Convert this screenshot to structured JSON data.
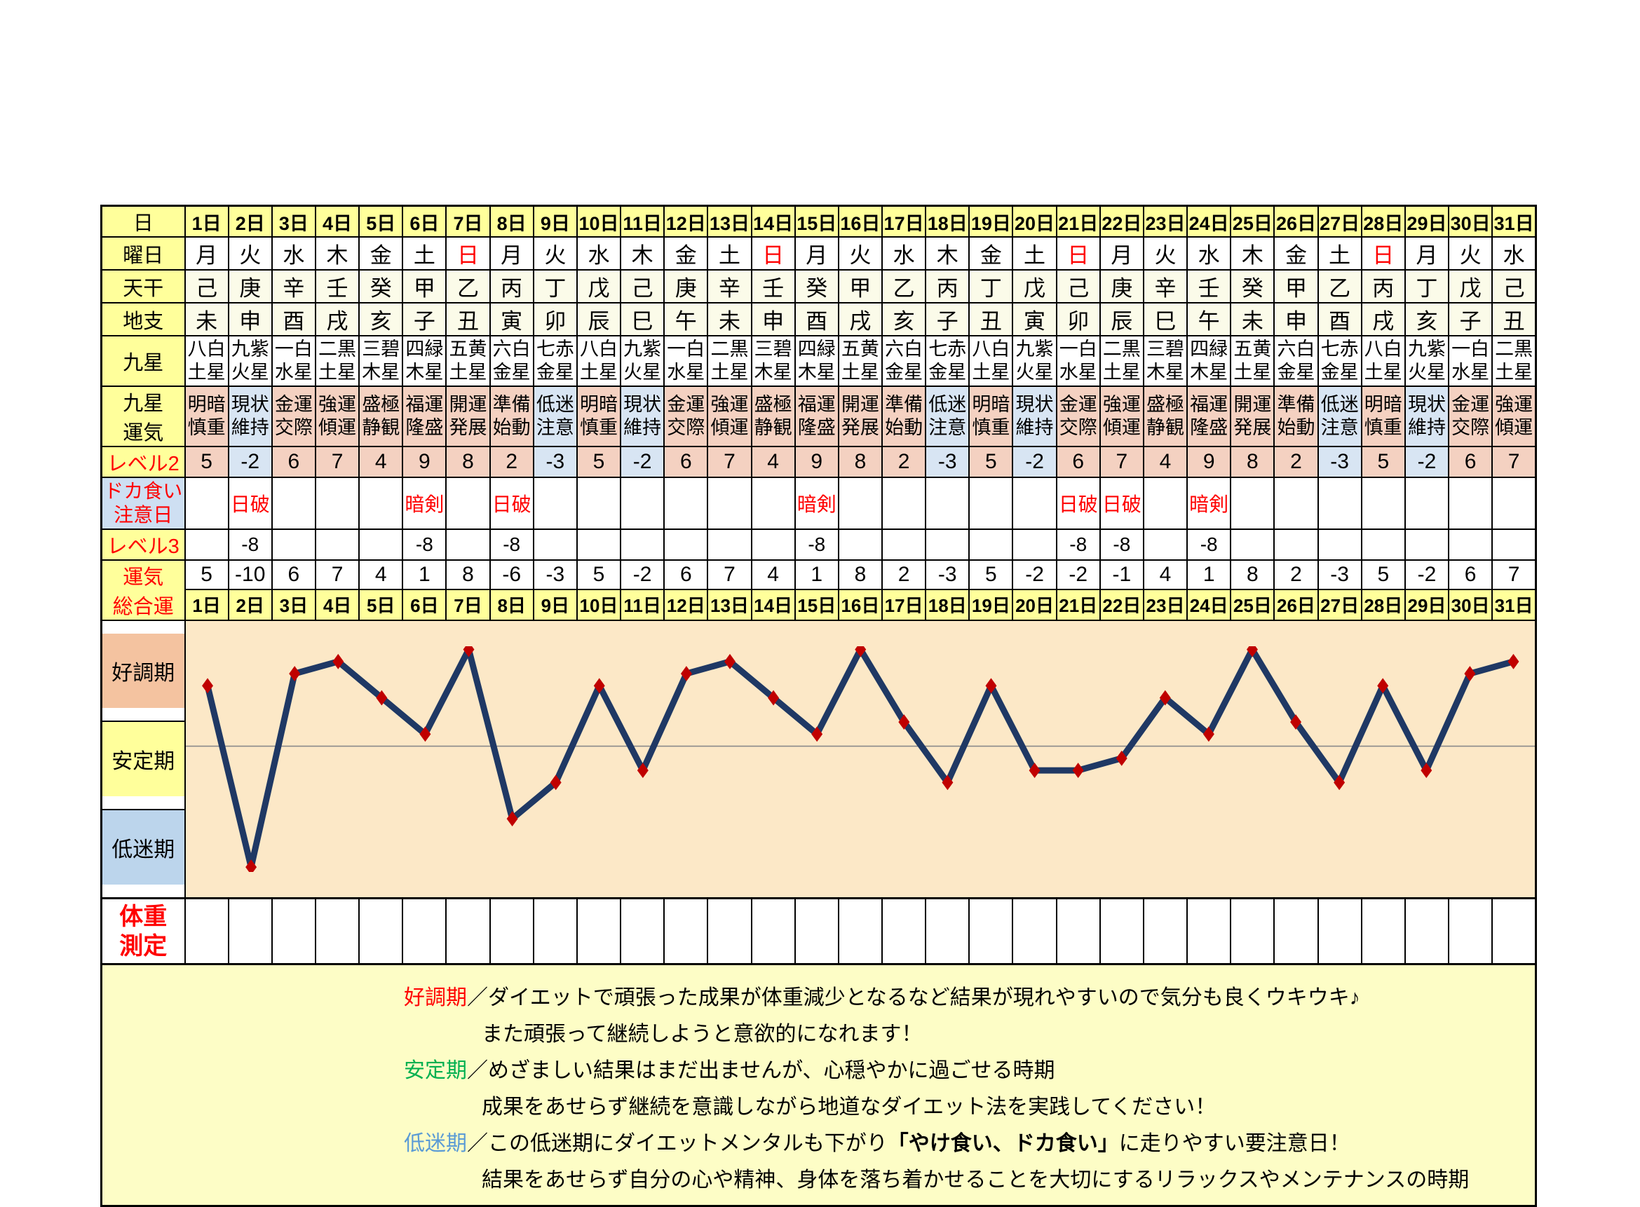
{
  "table": {
    "corner_label": "日",
    "row_labels": {
      "day": "日",
      "weekday": "曜日",
      "tenkan": "天干",
      "chishi": "地支",
      "kyusei": "九星",
      "kyusei_unki": "九星\n運気",
      "level2": "レベル2",
      "doka": "ドカ食い\n注意日",
      "level3": "レベル3",
      "total": "運気\n総合運",
      "weight": "体重\n測定"
    },
    "days": [
      "1日",
      "2日",
      "3日",
      "4日",
      "5日",
      "6日",
      "7日",
      "8日",
      "9日",
      "10日",
      "11日",
      "12日",
      "13日",
      "14日",
      "15日",
      "16日",
      "17日",
      "18日",
      "19日",
      "20日",
      "21日",
      "22日",
      "23日",
      "24日",
      "25日",
      "26日",
      "27日",
      "28日",
      "29日",
      "30日",
      "31日"
    ],
    "weekday": [
      {
        "t": "月",
        "c": ""
      },
      {
        "t": "火",
        "c": ""
      },
      {
        "t": "水",
        "c": ""
      },
      {
        "t": "木",
        "c": ""
      },
      {
        "t": "金",
        "c": ""
      },
      {
        "t": "土",
        "c": ""
      },
      {
        "t": "日",
        "c": "sun"
      },
      {
        "t": "月",
        "c": ""
      },
      {
        "t": "火",
        "c": ""
      },
      {
        "t": "水",
        "c": ""
      },
      {
        "t": "木",
        "c": ""
      },
      {
        "t": "金",
        "c": ""
      },
      {
        "t": "土",
        "c": ""
      },
      {
        "t": "日",
        "c": "sun"
      },
      {
        "t": "月",
        "c": ""
      },
      {
        "t": "火",
        "c": ""
      },
      {
        "t": "水",
        "c": ""
      },
      {
        "t": "木",
        "c": ""
      },
      {
        "t": "金",
        "c": ""
      },
      {
        "t": "土",
        "c": ""
      },
      {
        "t": "日",
        "c": "sun"
      },
      {
        "t": "月",
        "c": ""
      },
      {
        "t": "火",
        "c": ""
      },
      {
        "t": "水",
        "c": ""
      },
      {
        "t": "木",
        "c": ""
      },
      {
        "t": "金",
        "c": ""
      },
      {
        "t": "土",
        "c": ""
      },
      {
        "t": "日",
        "c": "sun"
      },
      {
        "t": "月",
        "c": ""
      },
      {
        "t": "火",
        "c": ""
      },
      {
        "t": "水",
        "c": ""
      }
    ],
    "tenkan": [
      "己",
      "庚",
      "辛",
      "壬",
      "癸",
      "甲",
      "乙",
      "丙",
      "丁",
      "戊",
      "己",
      "庚",
      "辛",
      "壬",
      "癸",
      "甲",
      "乙",
      "丙",
      "丁",
      "戊",
      "己",
      "庚",
      "辛",
      "壬",
      "癸",
      "甲",
      "乙",
      "丙",
      "丁",
      "戊",
      "己"
    ],
    "chishi": [
      "未",
      "申",
      "酉",
      "戌",
      "亥",
      "子",
      "丑",
      "寅",
      "卯",
      "辰",
      "巳",
      "午",
      "未",
      "申",
      "酉",
      "戌",
      "亥",
      "子",
      "丑",
      "寅",
      "卯",
      "辰",
      "巳",
      "午",
      "未",
      "申",
      "酉",
      "戌",
      "亥",
      "子",
      "丑"
    ],
    "kyusei": [
      "八白\n土星",
      "九紫\n火星",
      "一白\n水星",
      "二黒\n土星",
      "三碧\n木星",
      "四緑\n木星",
      "五黄\n土星",
      "六白\n金星",
      "七赤\n金星",
      "八白\n土星",
      "九紫\n火星",
      "一白\n水星",
      "二黒\n土星",
      "三碧\n木星",
      "四緑\n木星",
      "五黄\n土星",
      "六白\n金星",
      "七赤\n金星",
      "八白\n土星",
      "九紫\n火星",
      "一白\n水星",
      "二黒\n土星",
      "三碧\n木星",
      "四緑\n木星",
      "五黄\n土星",
      "六白\n金星",
      "七赤\n金星",
      "八白\n土星",
      "九紫\n火星",
      "一白\n水星",
      "二黒\n土星"
    ],
    "kyusei_unki": [
      {
        "t": "明暗\n慎重",
        "c": "pos"
      },
      {
        "t": "現状\n維持",
        "c": "neg"
      },
      {
        "t": "金運\n交際",
        "c": "pos"
      },
      {
        "t": "強運\n傾運",
        "c": "pos"
      },
      {
        "t": "盛極\n静観",
        "c": "pos"
      },
      {
        "t": "福運\n隆盛",
        "c": "pos"
      },
      {
        "t": "開運\n発展",
        "c": "pos"
      },
      {
        "t": "準備\n始動",
        "c": "pos"
      },
      {
        "t": "低迷\n注意",
        "c": "neg"
      },
      {
        "t": "明暗\n慎重",
        "c": "pos"
      },
      {
        "t": "現状\n維持",
        "c": "neg"
      },
      {
        "t": "金運\n交際",
        "c": "pos"
      },
      {
        "t": "強運\n傾運",
        "c": "pos"
      },
      {
        "t": "盛極\n静観",
        "c": "pos"
      },
      {
        "t": "福運\n隆盛",
        "c": "pos"
      },
      {
        "t": "開運\n発展",
        "c": "pos"
      },
      {
        "t": "準備\n始動",
        "c": "pos"
      },
      {
        "t": "低迷\n注意",
        "c": "neg"
      },
      {
        "t": "明暗\n慎重",
        "c": "pos"
      },
      {
        "t": "現状\n維持",
        "c": "neg"
      },
      {
        "t": "金運\n交際",
        "c": "pos"
      },
      {
        "t": "強運\n傾運",
        "c": "pos"
      },
      {
        "t": "盛極\n静観",
        "c": "pos"
      },
      {
        "t": "福運\n隆盛",
        "c": "pos"
      },
      {
        "t": "開運\n発展",
        "c": "pos"
      },
      {
        "t": "準備\n始動",
        "c": "pos"
      },
      {
        "t": "低迷\n注意",
        "c": "neg"
      },
      {
        "t": "明暗\n慎重",
        "c": "pos"
      },
      {
        "t": "現状\n維持",
        "c": "neg"
      },
      {
        "t": "金運\n交際",
        "c": "pos"
      },
      {
        "t": "強運\n傾運",
        "c": "pos"
      }
    ],
    "level2": [
      {
        "t": "5",
        "c": "pos"
      },
      {
        "t": "-2",
        "c": "neg"
      },
      {
        "t": "6",
        "c": "pos"
      },
      {
        "t": "7",
        "c": "pos"
      },
      {
        "t": "4",
        "c": "pos"
      },
      {
        "t": "9",
        "c": "pos"
      },
      {
        "t": "8",
        "c": "pos"
      },
      {
        "t": "2",
        "c": "pos"
      },
      {
        "t": "-3",
        "c": "neg"
      },
      {
        "t": "5",
        "c": "pos"
      },
      {
        "t": "-2",
        "c": "neg"
      },
      {
        "t": "6",
        "c": "pos"
      },
      {
        "t": "7",
        "c": "pos"
      },
      {
        "t": "4",
        "c": "pos"
      },
      {
        "t": "9",
        "c": "pos"
      },
      {
        "t": "8",
        "c": "pos"
      },
      {
        "t": "2",
        "c": "pos"
      },
      {
        "t": "-3",
        "c": "neg"
      },
      {
        "t": "5",
        "c": "pos"
      },
      {
        "t": "-2",
        "c": "neg"
      },
      {
        "t": "6",
        "c": "pos"
      },
      {
        "t": "7",
        "c": "pos"
      },
      {
        "t": "4",
        "c": "pos"
      },
      {
        "t": "9",
        "c": "pos"
      },
      {
        "t": "8",
        "c": "pos"
      },
      {
        "t": "2",
        "c": "pos"
      },
      {
        "t": "-3",
        "c": "neg"
      },
      {
        "t": "5",
        "c": "pos"
      },
      {
        "t": "-2",
        "c": "neg"
      },
      {
        "t": "6",
        "c": "pos"
      },
      {
        "t": "7",
        "c": "pos"
      }
    ],
    "doka": [
      {
        "t": "",
        "c": ""
      },
      {
        "t": "日破",
        "c": "warn"
      },
      {
        "t": "",
        "c": ""
      },
      {
        "t": "",
        "c": ""
      },
      {
        "t": "",
        "c": ""
      },
      {
        "t": "暗剣",
        "c": "warn"
      },
      {
        "t": "",
        "c": ""
      },
      {
        "t": "日破",
        "c": "warn"
      },
      {
        "t": "",
        "c": ""
      },
      {
        "t": "",
        "c": ""
      },
      {
        "t": "",
        "c": ""
      },
      {
        "t": "",
        "c": ""
      },
      {
        "t": "",
        "c": ""
      },
      {
        "t": "",
        "c": ""
      },
      {
        "t": "暗剣",
        "c": "warn"
      },
      {
        "t": "",
        "c": ""
      },
      {
        "t": "",
        "c": ""
      },
      {
        "t": "",
        "c": ""
      },
      {
        "t": "",
        "c": ""
      },
      {
        "t": "",
        "c": ""
      },
      {
        "t": "日破",
        "c": "warn"
      },
      {
        "t": "日破",
        "c": "warn"
      },
      {
        "t": "",
        "c": ""
      },
      {
        "t": "暗剣",
        "c": "warn"
      },
      {
        "t": "",
        "c": ""
      },
      {
        "t": "",
        "c": ""
      },
      {
        "t": "",
        "c": ""
      },
      {
        "t": "",
        "c": ""
      },
      {
        "t": "",
        "c": ""
      },
      {
        "t": "",
        "c": ""
      },
      {
        "t": "",
        "c": ""
      }
    ],
    "level3": [
      {
        "t": "",
        "c": ""
      },
      {
        "t": "-8",
        "c": "fill"
      },
      {
        "t": "",
        "c": ""
      },
      {
        "t": "",
        "c": ""
      },
      {
        "t": "",
        "c": ""
      },
      {
        "t": "-8",
        "c": "fill"
      },
      {
        "t": "",
        "c": ""
      },
      {
        "t": "-8",
        "c": "fill"
      },
      {
        "t": "",
        "c": ""
      },
      {
        "t": "",
        "c": ""
      },
      {
        "t": "",
        "c": ""
      },
      {
        "t": "",
        "c": ""
      },
      {
        "t": "",
        "c": ""
      },
      {
        "t": "",
        "c": ""
      },
      {
        "t": "-8",
        "c": "fill"
      },
      {
        "t": "",
        "c": ""
      },
      {
        "t": "",
        "c": ""
      },
      {
        "t": "",
        "c": ""
      },
      {
        "t": "",
        "c": ""
      },
      {
        "t": "",
        "c": ""
      },
      {
        "t": "-8",
        "c": "fill"
      },
      {
        "t": "-8",
        "c": "fill"
      },
      {
        "t": "",
        "c": ""
      },
      {
        "t": "-8",
        "c": "fill"
      },
      {
        "t": "",
        "c": ""
      },
      {
        "t": "",
        "c": ""
      },
      {
        "t": "",
        "c": ""
      },
      {
        "t": "",
        "c": ""
      },
      {
        "t": "",
        "c": ""
      },
      {
        "t": "",
        "c": ""
      },
      {
        "t": "",
        "c": ""
      }
    ],
    "total": [
      "5",
      "-10",
      "6",
      "7",
      "4",
      "1",
      "8",
      "-6",
      "-3",
      "5",
      "-2",
      "6",
      "7",
      "4",
      "1",
      "8",
      "2",
      "-3",
      "5",
      "-2",
      "-2",
      "-1",
      "4",
      "1",
      "8",
      "2",
      "-3",
      "5",
      "-2",
      "6",
      "7"
    ]
  },
  "bands": [
    {
      "label": "好調期",
      "color": "#F4C3A0"
    },
    {
      "label": "安定期",
      "color": "#FFFF9B"
    },
    {
      "label": "低迷期",
      "color": "#BCD5EC"
    }
  ],
  "chart_data": {
    "type": "line",
    "series_name": "運気総合運",
    "x": [
      1,
      2,
      3,
      4,
      5,
      6,
      7,
      8,
      9,
      10,
      11,
      12,
      13,
      14,
      15,
      16,
      17,
      18,
      19,
      20,
      21,
      22,
      23,
      24,
      25,
      26,
      27,
      28,
      29,
      30,
      31
    ],
    "x_labels": [
      "1日",
      "2日",
      "3日",
      "4日",
      "5日",
      "6日",
      "7日",
      "8日",
      "9日",
      "10日",
      "11日",
      "12日",
      "13日",
      "14日",
      "15日",
      "16日",
      "17日",
      "18日",
      "19日",
      "20日",
      "21日",
      "22日",
      "23日",
      "24日",
      "25日",
      "26日",
      "27日",
      "28日",
      "29日",
      "30日",
      "31日"
    ],
    "values": [
      5,
      -10,
      6,
      7,
      4,
      1,
      8,
      -6,
      -3,
      5,
      -2,
      6,
      7,
      4,
      1,
      8,
      2,
      -3,
      5,
      -2,
      -2,
      -1,
      4,
      1,
      8,
      2,
      -3,
      5,
      -2,
      6,
      7
    ],
    "ylim": [
      -10.4,
      8.3
    ],
    "zero_line": true,
    "grid": false,
    "zones": [
      {
        "label": "好調期",
        "from": 2,
        "to": 8.3
      },
      {
        "label": "安定期",
        "from": -4,
        "to": 2
      },
      {
        "label": "低迷期",
        "from": -10.4,
        "to": -4
      }
    ],
    "line_color": "#1F3864",
    "marker": "diamond",
    "marker_color": "#C00000",
    "plot_background": "#FCE8C7",
    "legend_position": "left-bands"
  },
  "colors": {
    "header_yellow": "#FFFF9B",
    "ivory_cell": "#FBFBE9",
    "positive_cell": "#F4D1C1",
    "negative_cell": "#D8E5F3",
    "doka_label_blue": "#CEDFF2",
    "legend_background": "#FDFDC6",
    "red_text": "#FF0000"
  },
  "legend": {
    "lines": [
      {
        "label": "好調期",
        "color": "#FF0000",
        "text": "／ダイエットで頑張った成果が体重減少となるなど結果が現れやすいので気分も良くウキウキ♪"
      },
      {
        "label": "",
        "color": "",
        "text": "また頑張って継続しようと意欲的になれます！"
      },
      {
        "label": "安定期",
        "color": "#00B050",
        "text": "／めざましい結果はまだ出ませんが、心穏やかに過ごせる時期"
      },
      {
        "label": "",
        "color": "",
        "text": "成果をあせらず継続を意識しながら地道なダイエット法を実践してください！"
      },
      {
        "label": "低迷期",
        "color": "#5B9BD5",
        "text": "／この低迷期にダイエットメンタルも下がり",
        "bold": "「やけ食い、ドカ食い」",
        "text_after": "に走りやすい要注意日！"
      },
      {
        "label": "",
        "color": "",
        "text": "結果をあせらず自分の心や精神、身体を落ち着かせることを大切にするリラックスやメンテナンスの時期"
      }
    ]
  }
}
